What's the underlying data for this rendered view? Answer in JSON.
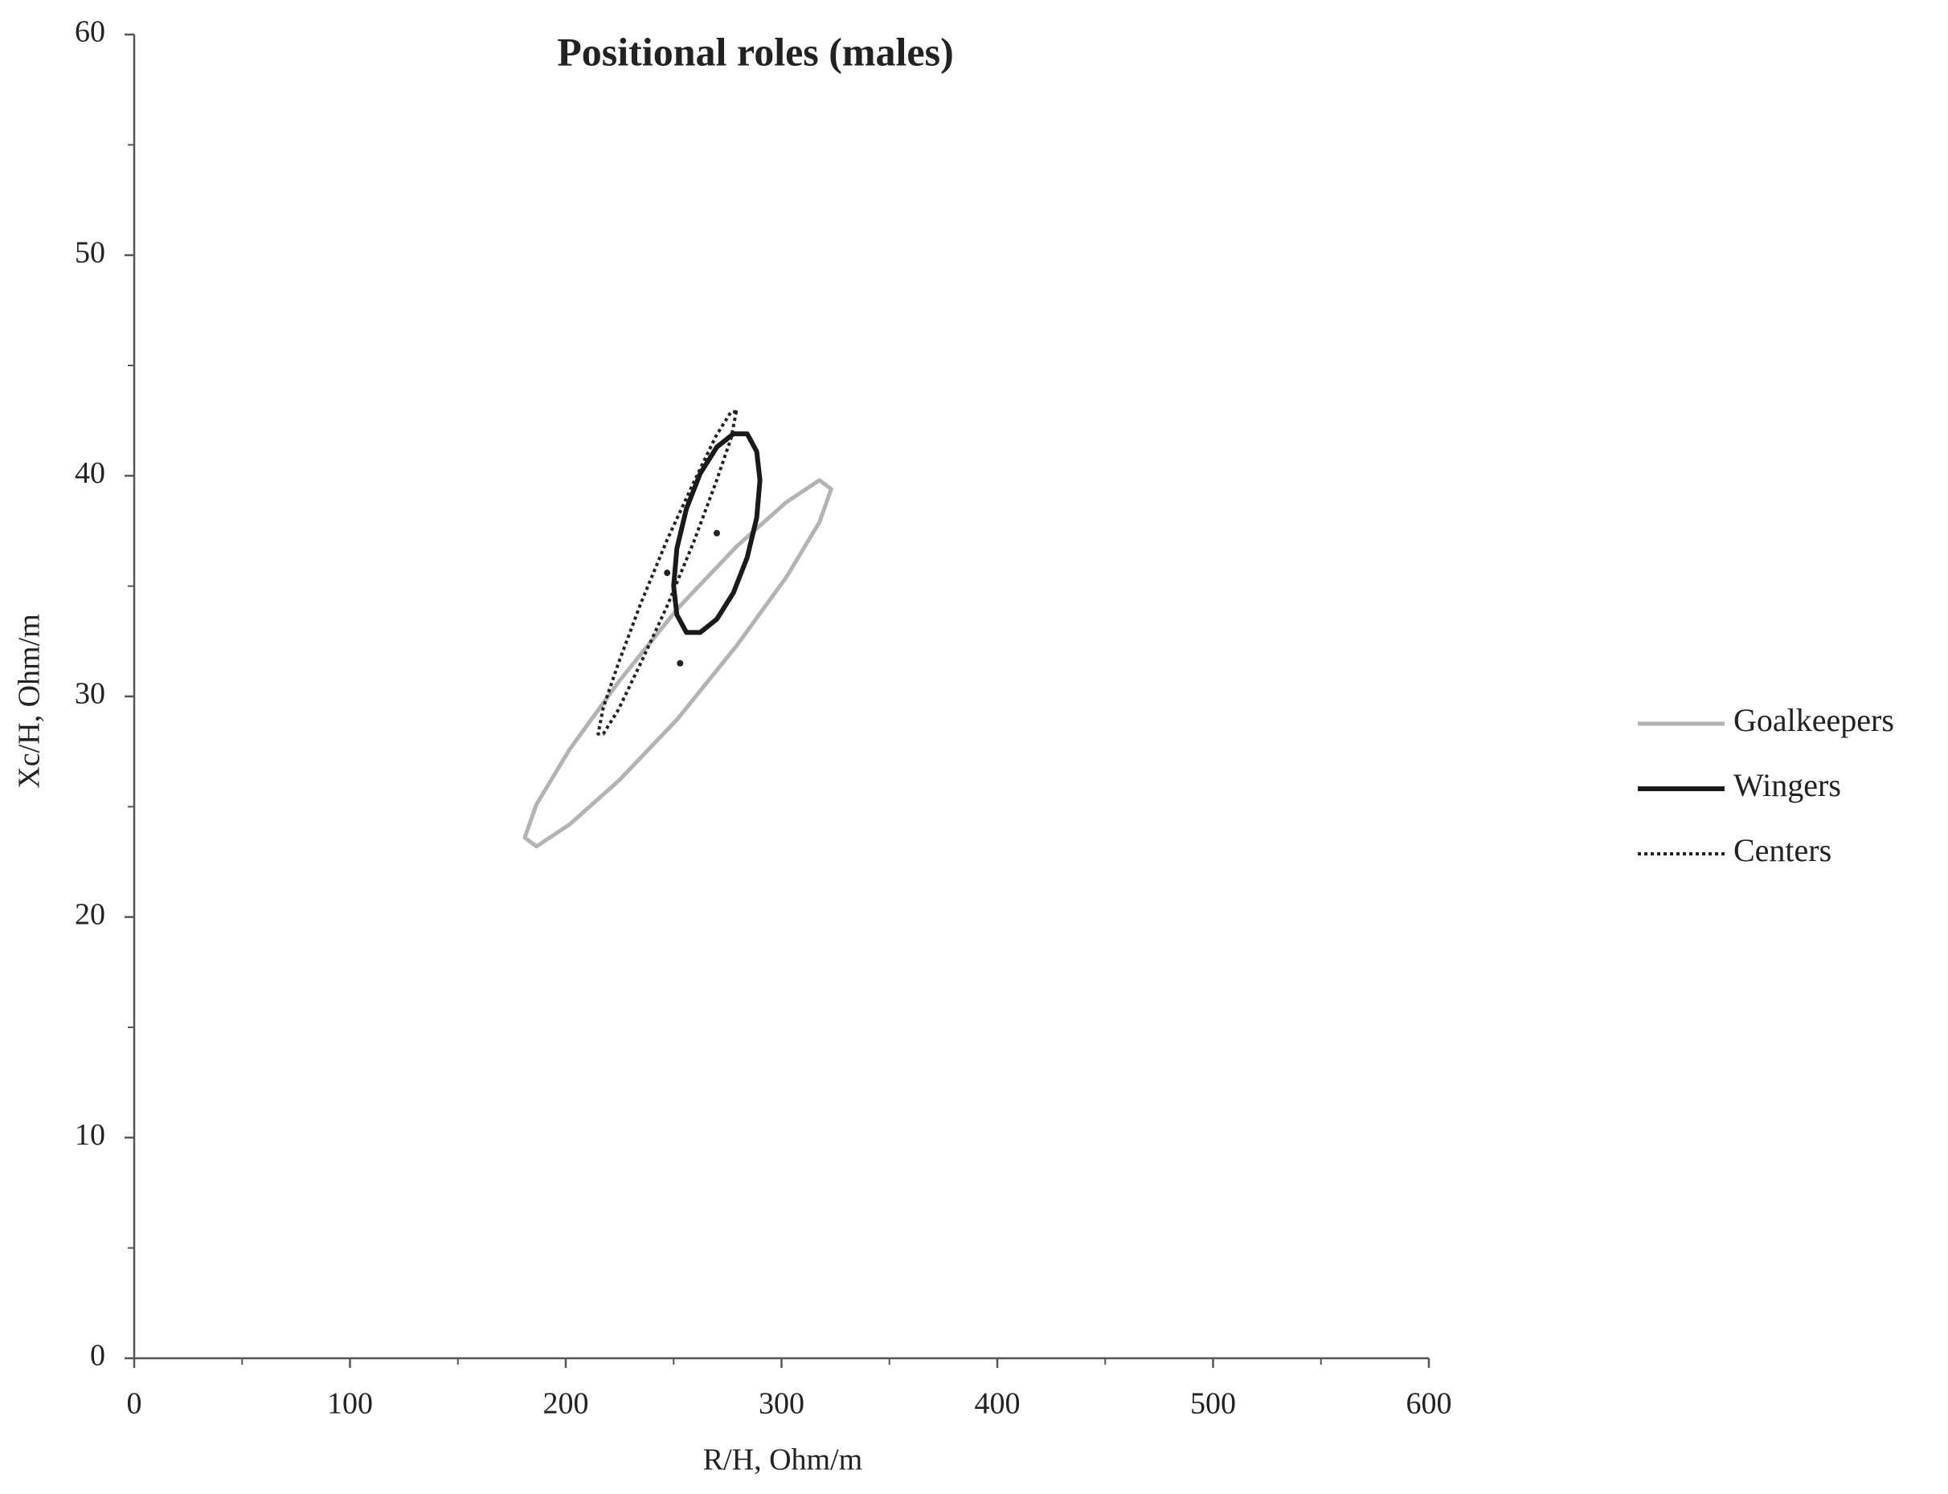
{
  "chart_data": {
    "type": "ellipse",
    "title": "Positional roles (males)",
    "x_label": "R/H, Ohm/m",
    "y_label": "Xc/H, Ohm/m",
    "xlim": [
      0,
      600
    ],
    "ylim": [
      0,
      60
    ],
    "xticks": [
      0,
      100,
      200,
      300,
      400,
      500,
      600
    ],
    "yticks": [
      0,
      10,
      20,
      30,
      40,
      50,
      60
    ],
    "xminorticks": [
      50,
      150,
      250,
      350,
      450,
      550
    ],
    "yminorticks": [
      5,
      15,
      25,
      35,
      45,
      55
    ],
    "legend": "right",
    "series": [
      {
        "name": "Goalkeepers",
        "color": "#b3b3b3",
        "style": "solid",
        "x": [
          323,
          317.6,
          302.2,
          279.2,
          252,
          224.8,
          201.8,
          186.4,
          181,
          186.4,
          201.8,
          224.8,
          252,
          279.2,
          302.2,
          317.6
        ],
        "y": [
          39.4,
          39.8,
          38.8,
          36.8,
          34.0,
          30.7,
          27.6,
          25.1,
          23.6,
          23.2,
          24.2,
          26.2,
          29.0,
          32.3,
          35.4,
          37.9
        ],
        "center": {
          "x": 253,
          "y": 31.5
        }
      },
      {
        "name": "Wingers",
        "color": "#1a1a1a",
        "style": "solid",
        "x": [
          290,
          288.5,
          284.1,
          277.7,
          270,
          262.3,
          255.9,
          251.5,
          250,
          251.5,
          255.9,
          262.3,
          270,
          277.7,
          284.1,
          288.5
        ],
        "y": [
          39.8,
          41.1,
          41.9,
          41.9,
          41.3,
          40.1,
          38.5,
          36.7,
          35.0,
          33.7,
          32.9,
          32.9,
          33.5,
          34.7,
          36.3,
          38.1
        ],
        "center": {
          "x": 270,
          "y": 37.4
        }
      },
      {
        "name": "Centers",
        "color": "#222222",
        "style": "dotted",
        "x": [
          279,
          276.6,
          269.6,
          259.3,
          247,
          234.7,
          224.4,
          217.4,
          215,
          217.4,
          224.4,
          234.7,
          247,
          259.3,
          269.6,
          276.6
        ],
        "y": [
          42.9,
          42.9,
          41.8,
          39.7,
          37.1,
          34.2,
          31.5,
          29.5,
          28.3,
          28.3,
          29.4,
          31.5,
          34.1,
          37.0,
          39.7,
          41.7
        ],
        "center": {
          "x": 247,
          "y": 35.6
        }
      }
    ]
  }
}
